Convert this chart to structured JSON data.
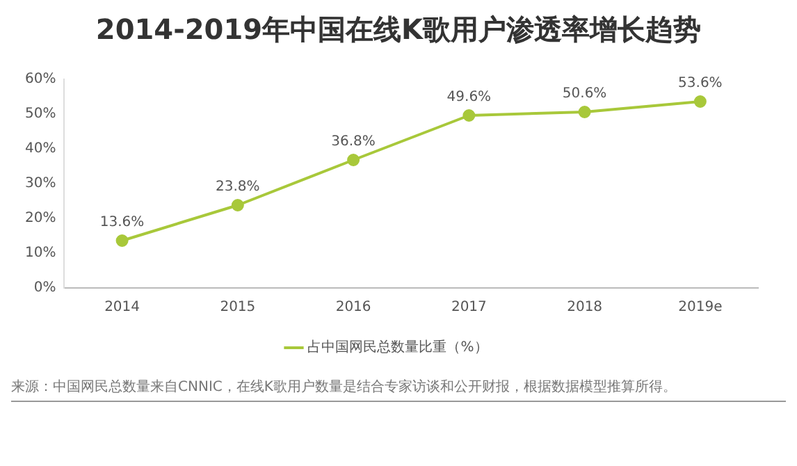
{
  "chart_data": {
    "type": "line",
    "title": "2014-2019年中国在线K歌用户渗透率增长趋势",
    "categories": [
      "2014",
      "2015",
      "2016",
      "2017",
      "2018",
      "2019e"
    ],
    "series": [
      {
        "name": "占中国网民总数量比重（%）",
        "color": "#a8c83a",
        "values": [
          13.6,
          23.8,
          36.8,
          49.6,
          50.6,
          53.6
        ],
        "value_labels": [
          "13.6%",
          "23.8%",
          "36.8%",
          "49.6%",
          "50.6%",
          "53.6%"
        ]
      }
    ],
    "ylim": [
      0,
      60
    ],
    "yticks": [
      {
        "value": 0,
        "label": "0%"
      },
      {
        "value": 10,
        "label": "10%"
      },
      {
        "value": 20,
        "label": "20%"
      },
      {
        "value": 30,
        "label": "30%"
      },
      {
        "value": 40,
        "label": "40%"
      },
      {
        "value": 50,
        "label": "50%"
      },
      {
        "value": 60,
        "label": "60%"
      }
    ],
    "grid": false,
    "legend": "bottom",
    "marker": "circle",
    "line_style": "solid",
    "annotations": [
      "来源：中国网民总数量来自CNNIC，在线K歌用户数量是结合专家访谈和公开财报，根据数据模型推算所得。"
    ]
  }
}
